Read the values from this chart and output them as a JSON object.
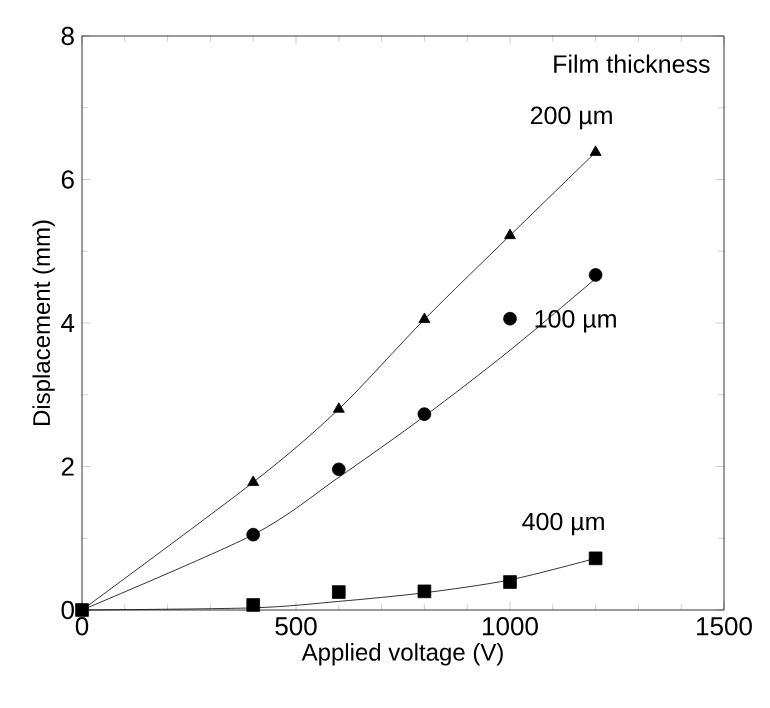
{
  "chart_data": {
    "type": "scatter",
    "xlabel": "Applied voltage (V)",
    "ylabel": "Displacement (mm)",
    "xlim": [
      0,
      1500
    ],
    "ylim": [
      0,
      8
    ],
    "xticks": [
      0,
      500,
      1000,
      1500
    ],
    "yticks": [
      0,
      2,
      4,
      6,
      8
    ],
    "series": [
      {
        "type": "line",
        "color": "#000000",
        "x": [
          0,
          400,
          600,
          800,
          1000,
          1200
        ],
        "values": [
          0,
          1.78,
          2.8,
          4.05,
          5.22,
          6.38
        ]
      },
      {
        "type": "line",
        "color": "#000000",
        "x": [
          0,
          400,
          600,
          800,
          1000,
          1200
        ],
        "values": [
          0,
          1.05,
          1.85,
          2.7,
          3.62,
          4.62
        ]
      },
      {
        "type": "line",
        "color": "#000000",
        "x": [
          0,
          400,
          600,
          800,
          1000,
          1200
        ],
        "values": [
          0,
          0.03,
          0.12,
          0.24,
          0.42,
          0.72
        ]
      },
      {
        "name": "200 µm",
        "marker": "triangle",
        "color": "#000000",
        "x": [
          400,
          600,
          800,
          1000,
          1200
        ],
        "values": [
          1.78,
          2.8,
          4.05,
          5.22,
          6.38
        ]
      },
      {
        "name": "100 µm",
        "marker": "circle",
        "color": "#000000",
        "x": [
          400,
          600,
          800,
          1000,
          1200
        ],
        "values": [
          1.05,
          1.96,
          2.73,
          4.06,
          4.67
        ]
      },
      {
        "name": "400 µm",
        "marker": "square",
        "color": "#000000",
        "x": [
          0,
          400,
          600,
          800,
          1000,
          1200
        ],
        "values": [
          0,
          0.07,
          0.25,
          0.26,
          0.39,
          0.72
        ]
      }
    ],
    "annotations": [
      "Film thickness"
    ]
  }
}
